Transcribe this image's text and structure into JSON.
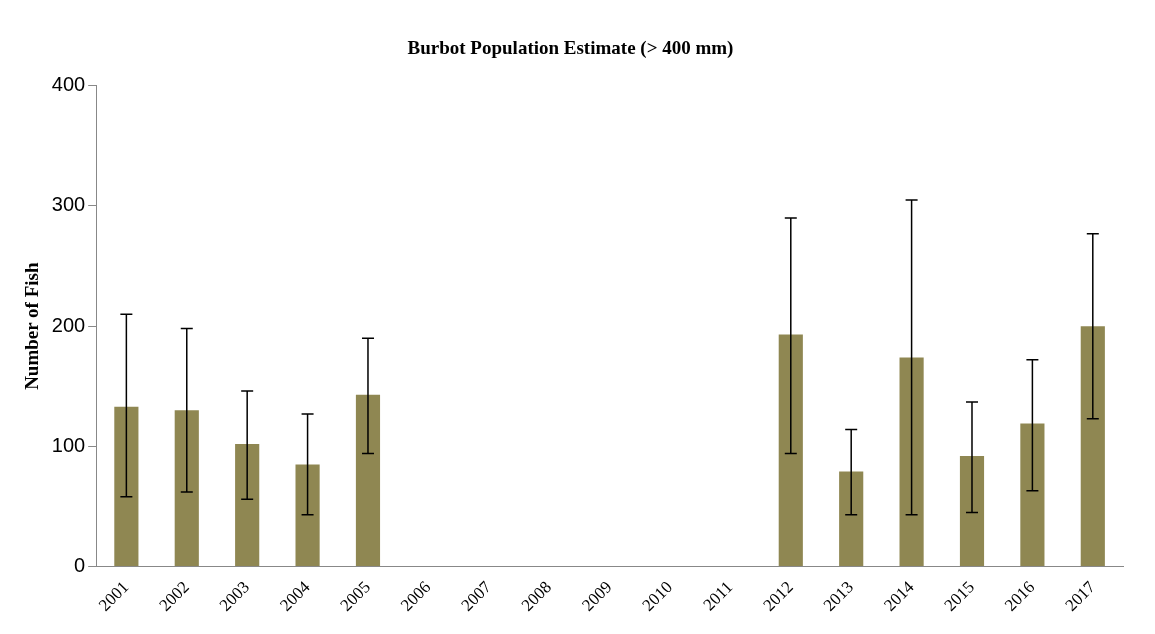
{
  "chart_data": {
    "type": "bar",
    "title": "Burbot Population Estimate (> 400 mm)",
    "ylabel": "Number of Fish",
    "categories": [
      "2001",
      "2002",
      "2003",
      "2004",
      "2005",
      "2006",
      "2007",
      "2008",
      "2009",
      "2010",
      "2011",
      "2012",
      "2013",
      "2014",
      "2015",
      "2016",
      "2017"
    ],
    "values": [
      133,
      130,
      102,
      85,
      143,
      null,
      null,
      null,
      null,
      null,
      null,
      193,
      79,
      174,
      92,
      119,
      200
    ],
    "errors": [
      [
        58,
        210
      ],
      [
        62,
        198
      ],
      [
        56,
        146
      ],
      [
        43,
        127
      ],
      [
        94,
        190
      ],
      null,
      null,
      null,
      null,
      null,
      null,
      [
        94,
        290
      ],
      [
        43,
        114
      ],
      [
        43,
        305
      ],
      [
        45,
        137
      ],
      [
        63,
        172
      ],
      [
        123,
        277
      ]
    ],
    "color": "#8f8752",
    "ylim": [
      0,
      400
    ],
    "yticks": [
      0,
      100,
      200,
      300,
      400
    ],
    "grid": false,
    "legend": false
  }
}
